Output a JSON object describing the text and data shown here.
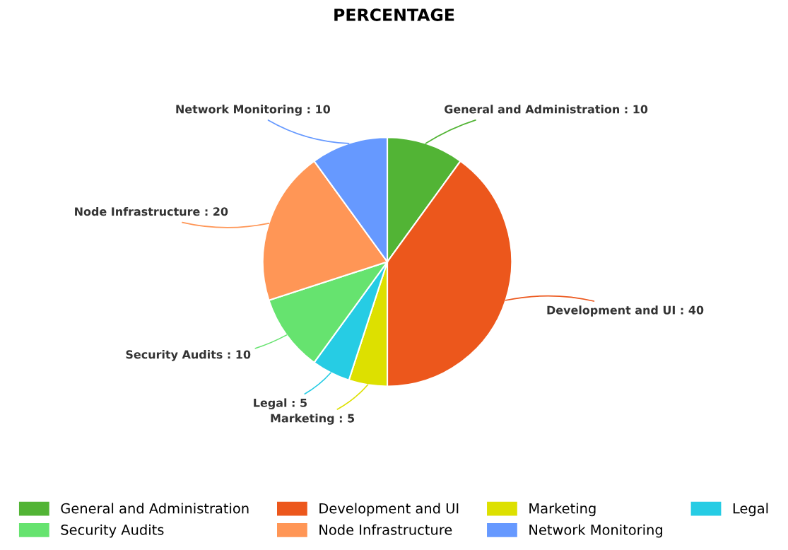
{
  "chart_data": {
    "type": "pie",
    "title": "PERCENTAGE",
    "categories": [
      "General and Administration",
      "Development and UI",
      "Marketing",
      "Legal",
      "Security Audits",
      "Node Infrastructure",
      "Network Monitoring"
    ],
    "values": [
      10,
      40,
      5,
      5,
      10,
      20,
      10
    ],
    "colors": [
      "#52b435",
      "#ec571c",
      "#dde000",
      "#26cce4",
      "#66e36f",
      "#ff9656",
      "#6699ff"
    ],
    "value_labels": [
      ": 10",
      ": 40",
      ": 5",
      ": 5",
      ": 10",
      ": 20",
      ": 10"
    ],
    "legend": "bottom"
  }
}
